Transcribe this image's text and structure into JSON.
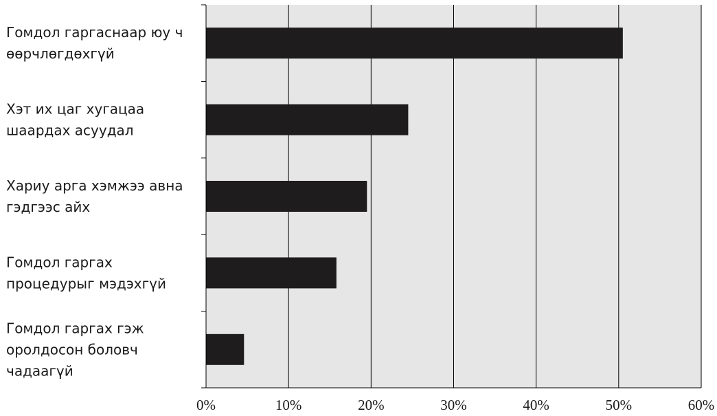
{
  "chart_data": {
    "type": "bar",
    "orientation": "horizontal",
    "categories": [
      [
        "Гомдол гаргаснаар юу ч",
        "өөрчлөгдөхгүй"
      ],
      [
        "Хэт их цаг хугацаа",
        "шаардах асуудал"
      ],
      [
        "Хариу арга хэмжээ авна",
        "гэдгээс айх"
      ],
      [
        "Гомдол гаргах",
        "процедурыг мэдэхгүй"
      ],
      [
        "Гомдол гаргах гэж",
        "оролдосон боловч",
        "чадаагүй"
      ]
    ],
    "values": [
      50.5,
      24.5,
      19.5,
      15.8,
      4.6
    ],
    "xlim": [
      0,
      60
    ],
    "xticks": [
      "0%",
      "10%",
      "20%",
      "30%",
      "40%",
      "50%",
      "60%"
    ],
    "grid": true,
    "colors": {
      "bar": "#1e1c1c",
      "plot_background": "#e6e6e6",
      "gridline": "#000000"
    }
  }
}
